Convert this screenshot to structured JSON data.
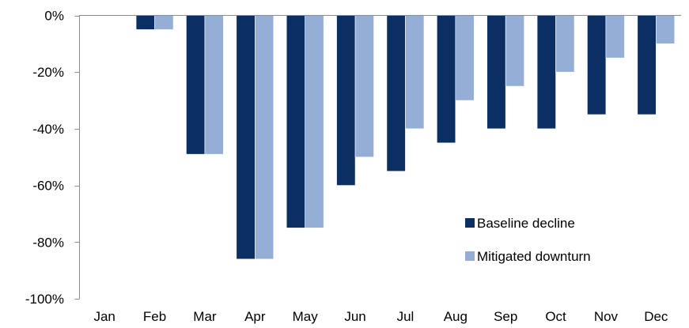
{
  "chart_data": {
    "type": "bar",
    "title": "",
    "xlabel": "",
    "ylabel": "",
    "categories": [
      "Jan",
      "Feb",
      "Mar",
      "Apr",
      "May",
      "Jun",
      "Jul",
      "Aug",
      "Sep",
      "Oct",
      "Nov",
      "Dec"
    ],
    "series": [
      {
        "name": "Baseline decline",
        "color": "#0c2f63",
        "values": [
          0,
          -5,
          -49,
          -86,
          -75,
          -60,
          -55,
          -45,
          -40,
          -40,
          -35,
          -35
        ]
      },
      {
        "name": "Mitigated downturn",
        "color": "#95aed6",
        "values": [
          0,
          -5,
          -49,
          -86,
          -75,
          -50,
          -40,
          -30,
          -25,
          -20,
          -15,
          -10
        ]
      }
    ],
    "ylim": [
      -100,
      0
    ],
    "yticks": [
      0,
      -20,
      -40,
      -60,
      -80,
      -100
    ],
    "ytick_labels": [
      "0%",
      "-20%",
      "-40%",
      "-60%",
      "-80%",
      "-100%"
    ],
    "grid": false,
    "legend_position": "bottom-right inside"
  }
}
